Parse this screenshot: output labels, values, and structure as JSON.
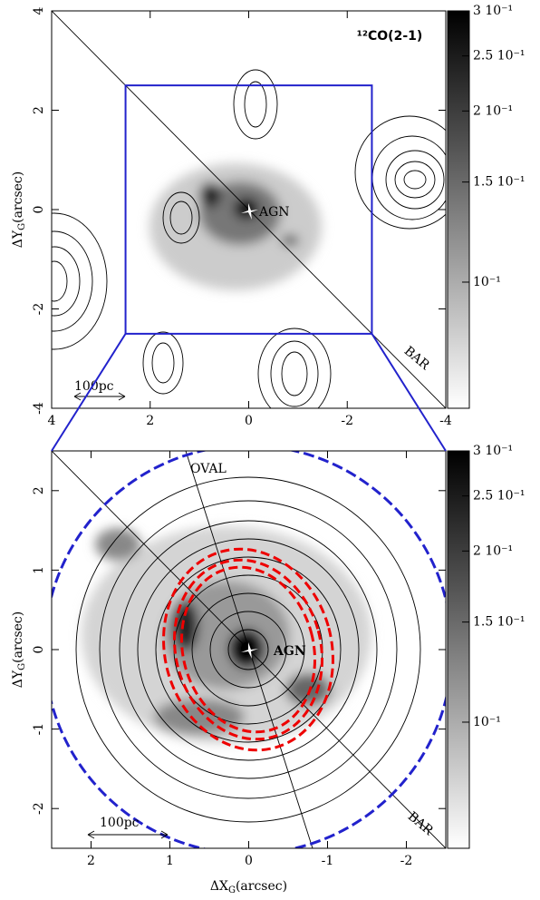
{
  "chart_data": [
    {
      "type": "image",
      "title": "¹²CO(2-1)",
      "ylabel": [
        "ΔY",
        "G",
        "(arcsec)"
      ],
      "xlim": [
        4,
        -4
      ],
      "ylim": [
        -4,
        4
      ],
      "xticks": [
        4,
        2,
        0,
        -2,
        -4
      ],
      "yticks": [
        -4,
        -2,
        0,
        2,
        4
      ],
      "clim": [
        0.06,
        0.3
      ],
      "color_scale": "log",
      "cticks": [
        {
          "value": 0.3,
          "label": "3 10⁻¹"
        },
        {
          "value": 0.25,
          "label": "2.5 10⁻¹"
        },
        {
          "value": 0.2,
          "label": "2 10⁻¹"
        },
        {
          "value": 0.15,
          "label": "1.5 10⁻¹"
        },
        {
          "value": 0.1,
          "label": "10⁻¹"
        }
      ],
      "annotations": [
        "AGN",
        "BAR",
        "100pc"
      ]
    },
    {
      "type": "image",
      "xlabel": [
        "ΔX",
        "G",
        "(arcsec)"
      ],
      "ylabel": [
        "ΔY",
        "G",
        "(arcsec)"
      ],
      "xlim": [
        2.5,
        -2.5
      ],
      "ylim": [
        -2.5,
        2.5
      ],
      "xticks": [
        2,
        1,
        0,
        -1,
        -2
      ],
      "yticks": [
        -2,
        -1,
        0,
        1,
        2
      ],
      "clim": [
        0.06,
        0.3
      ],
      "color_scale": "log",
      "cticks": [
        {
          "value": 0.3,
          "label": "3 10⁻¹"
        },
        {
          "value": 0.25,
          "label": "2.5 10⁻¹"
        },
        {
          "value": 0.2,
          "label": "2 10⁻¹"
        },
        {
          "value": 0.15,
          "label": "1.5 10⁻¹"
        },
        {
          "value": 0.1,
          "label": "10⁻¹"
        }
      ],
      "annotations": [
        "OVAL",
        "AGN",
        "BAR",
        "100pc"
      ]
    }
  ]
}
